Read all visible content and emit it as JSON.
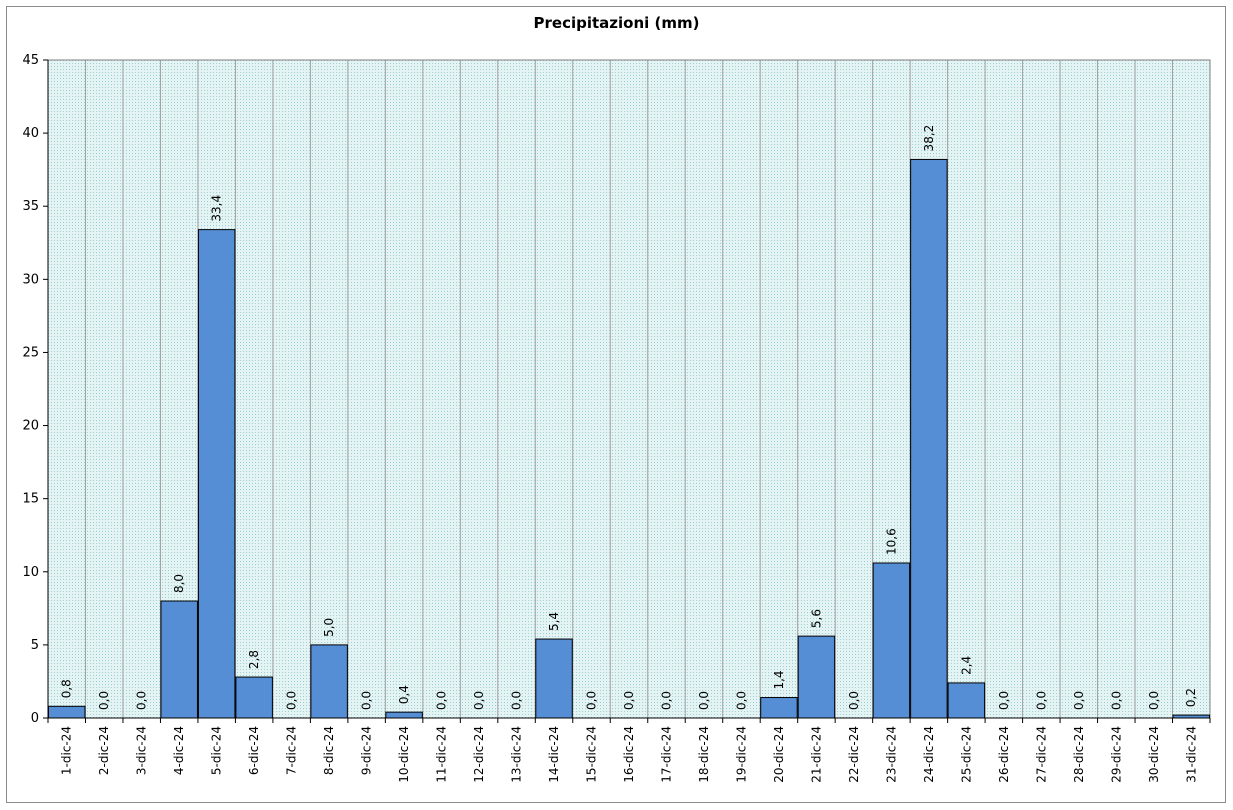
{
  "chart_data": {
    "type": "bar",
    "title": "Precipitazioni  (mm)",
    "xlabel": "",
    "ylabel": "",
    "ylim": [
      0,
      45
    ],
    "yticks": [
      0,
      5,
      10,
      15,
      20,
      25,
      30,
      35,
      40,
      45
    ],
    "grid": "vertical",
    "legend": "none",
    "colors": {
      "bar": "#558ed5",
      "bar_border": "#000000",
      "plot_bg": "#dcf0f0",
      "grid": "#a0a0a0"
    },
    "categories": [
      "1-dic-24",
      "2-dic-24",
      "3-dic-24",
      "4-dic-24",
      "5-dic-24",
      "6-dic-24",
      "7-dic-24",
      "8-dic-24",
      "9-dic-24",
      "10-dic-24",
      "11-dic-24",
      "12-dic-24",
      "13-dic-24",
      "14-dic-24",
      "15-dic-24",
      "16-dic-24",
      "17-dic-24",
      "18-dic-24",
      "19-dic-24",
      "20-dic-24",
      "21-dic-24",
      "22-dic-24",
      "23-dic-24",
      "24-dic-24",
      "25-dic-24",
      "26-dic-24",
      "27-dic-24",
      "28-dic-24",
      "29-dic-24",
      "30-dic-24",
      "31-dic-24"
    ],
    "values": [
      0.8,
      0.0,
      0.0,
      8.0,
      33.4,
      2.8,
      0.0,
      5.0,
      0.0,
      0.4,
      0.0,
      0.0,
      0.0,
      5.4,
      0.0,
      0.0,
      0.0,
      0.0,
      0.0,
      1.4,
      5.6,
      0.0,
      10.6,
      38.2,
      2.4,
      0.0,
      0.0,
      0.0,
      0.0,
      0.0,
      0.2
    ],
    "data_labels": [
      "0,8",
      "0,0",
      "0,0",
      "8,0",
      "33,4",
      "2,8",
      "0,0",
      "5,0",
      "0,0",
      "0,4",
      "0,0",
      "0,0",
      "0,0",
      "5,4",
      "0,0",
      "0,0",
      "0,0",
      "0,0",
      "0,0",
      "1,4",
      "5,6",
      "0,0",
      "10,6",
      "38,2",
      "2,4",
      "0,0",
      "0,0",
      "0,0",
      "0,0",
      "0,0",
      "0,2"
    ]
  }
}
